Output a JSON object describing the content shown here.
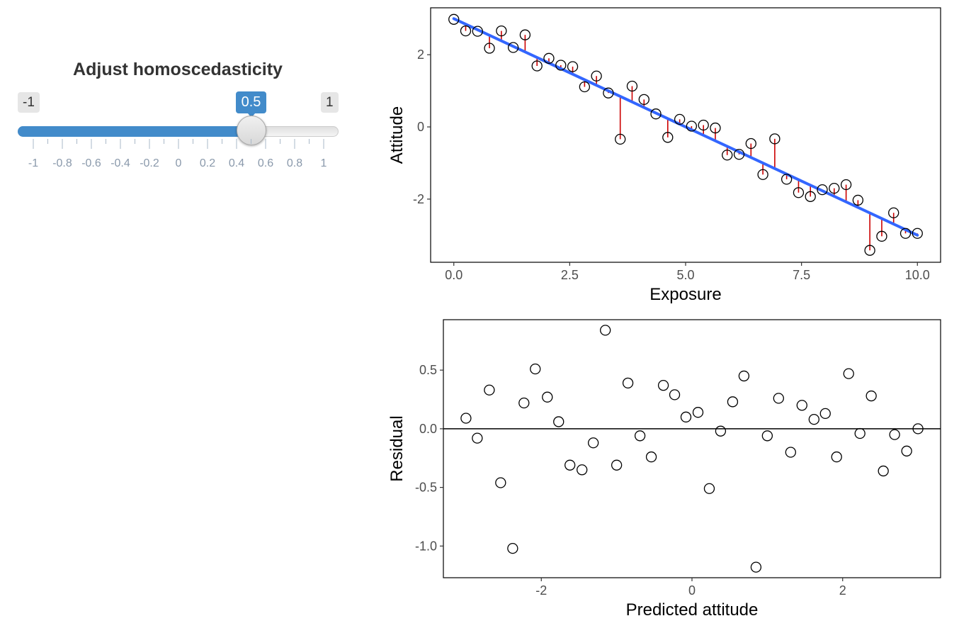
{
  "slider": {
    "title": "Adjust homoscedasticity",
    "min_label": "-1",
    "max_label": "1",
    "value_label": "0.5",
    "min": -1,
    "max": 1,
    "value": 0.5,
    "step": 0.1,
    "tick_labels": [
      "-1",
      "-0.8",
      "-0.6",
      "-0.4",
      "-0.2",
      "0",
      "0.2",
      "0.4",
      "0.6",
      "0.8",
      "1"
    ],
    "accent_color": "#428bca"
  },
  "chart_data": [
    {
      "type": "scatter",
      "title": "",
      "xlabel": "Exposure",
      "ylabel": "Attitude",
      "xlim": [
        -0.5,
        10.5
      ],
      "ylim": [
        -3.75,
        3.3
      ],
      "x_ticks": [
        0,
        2.5,
        5,
        7.5,
        10
      ],
      "x_tick_labels": [
        "0.0",
        "2.5",
        "5.0",
        "7.5",
        "10.0"
      ],
      "y_ticks": [
        -2,
        0,
        2
      ],
      "y_tick_labels": [
        "-2",
        "0",
        "2"
      ],
      "grid": false,
      "fit_line": {
        "intercept": 3.0,
        "slope": -0.6,
        "color": "#3366ff"
      },
      "residual_color": "#cc0000",
      "x": [
        0,
        0.256,
        0.513,
        0.769,
        1.026,
        1.282,
        1.538,
        1.795,
        2.051,
        2.308,
        2.564,
        2.821,
        3.077,
        3.333,
        3.59,
        3.846,
        4.103,
        4.359,
        4.615,
        4.872,
        5.128,
        5.385,
        5.641,
        5.897,
        6.154,
        6.41,
        6.667,
        6.923,
        7.179,
        7.436,
        7.692,
        7.949,
        8.205,
        8.462,
        8.718,
        8.974,
        9.231,
        9.487,
        9.744,
        10
      ],
      "y": [
        2.98,
        2.66,
        2.65,
        2.18,
        2.66,
        2.2,
        2.55,
        1.69,
        1.9,
        1.71,
        1.67,
        1.11,
        1.41,
        0.94,
        -0.34,
        1.13,
        0.76,
        0.36,
        -0.29,
        0.21,
        0.02,
        0.05,
        -0.03,
        -0.78,
        -0.76,
        -0.46,
        -1.32,
        -0.33,
        -1.45,
        -1.82,
        -1.93,
        -1.74,
        -1.7,
        -1.6,
        -2.03,
        -3.42,
        -3.03,
        -2.38,
        -2.95,
        -2.95
      ]
    },
    {
      "type": "scatter",
      "title": "",
      "xlabel": "Predicted attitude",
      "ylabel": "Residual",
      "xlim": [
        -3.3,
        3.3
      ],
      "ylim": [
        -1.27,
        0.93
      ],
      "x_ticks": [
        -2,
        0,
        2
      ],
      "x_tick_labels": [
        "-2",
        "0",
        "2"
      ],
      "y_ticks": [
        -1.0,
        -0.5,
        0.0,
        0.5
      ],
      "y_tick_labels": [
        "-1.0",
        "-0.5",
        "0.0",
        "0.5"
      ],
      "grid": false,
      "zero_line": true,
      "x": [
        -3.0,
        -2.85,
        -2.69,
        -2.54,
        -2.38,
        -2.23,
        -2.08,
        -1.92,
        -1.77,
        -1.62,
        -1.46,
        -1.31,
        -1.15,
        -1.0,
        -0.85,
        -0.69,
        -0.54,
        -0.38,
        -0.23,
        -0.08,
        0.08,
        0.23,
        0.38,
        0.54,
        0.69,
        0.85,
        1.0,
        1.15,
        1.31,
        1.46,
        1.62,
        1.77,
        1.92,
        2.08,
        2.23,
        2.38,
        2.54,
        2.69,
        2.85,
        3.0
      ],
      "y": [
        0.09,
        -0.08,
        0.33,
        -0.46,
        -1.02,
        0.22,
        0.51,
        0.27,
        0.06,
        -0.31,
        -0.35,
        -0.12,
        0.84,
        -0.31,
        0.39,
        -0.06,
        -0.24,
        0.37,
        0.29,
        0.1,
        0.14,
        -0.51,
        -0.02,
        0.23,
        0.45,
        -1.18,
        -0.06,
        0.26,
        -0.2,
        0.2,
        0.08,
        0.13,
        -0.24,
        0.47,
        -0.04,
        0.28,
        -0.36,
        -0.05,
        -0.19,
        0.0
      ]
    }
  ]
}
